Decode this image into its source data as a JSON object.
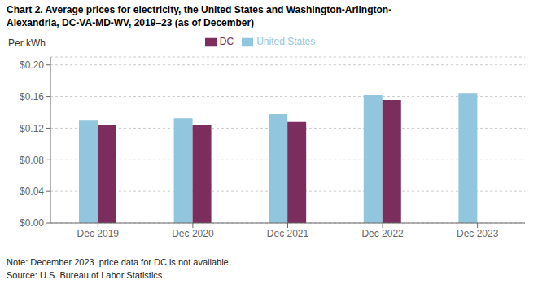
{
  "chart_data": {
    "type": "bar",
    "title": "Chart 2. Average prices for electricity, the United States and Washington-Arlington-\nAlexandria, DC-VA-MD-WV, 2019–23 (as of December)",
    "y_label": "Per kWh",
    "categories": [
      "Dec 2019",
      "Dec 2020",
      "Dec 2021",
      "Dec 2022",
      "Dec 2023"
    ],
    "series": [
      {
        "name": "United States",
        "color": "#92C5DE",
        "values": [
          0.1295,
          0.1325,
          0.138,
          0.1615,
          0.1645
        ]
      },
      {
        "name": "DC",
        "color": "#7B2D5E",
        "values": [
          0.1235,
          0.1235,
          0.128,
          0.1555,
          null
        ]
      }
    ],
    "ylim": [
      0.0,
      0.21
    ],
    "yticks": [
      {
        "value": 0.0,
        "label": "$0.00"
      },
      {
        "value": 0.04,
        "label": "$0.04"
      },
      {
        "value": 0.08,
        "label": "$0.08"
      },
      {
        "value": 0.12,
        "label": "$0.12"
      },
      {
        "value": 0.16,
        "label": "$0.16"
      },
      {
        "value": 0.2,
        "label": "$0.20"
      }
    ],
    "grid": true,
    "legend": "top",
    "annotations": [
      "Note: December 2023  price data for DC is not available.",
      "Source: U.S. Bureau of Labor Statistics."
    ]
  }
}
